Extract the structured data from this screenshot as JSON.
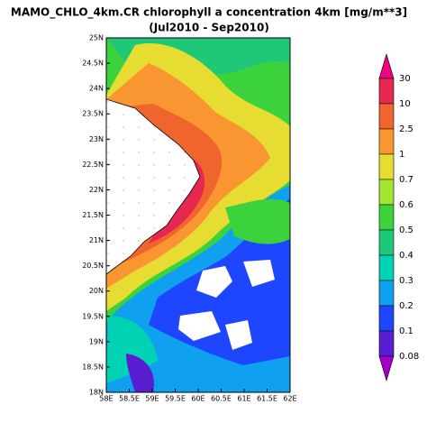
{
  "header": {
    "title": "MAMO_CHLO_4km.CR chlorophyll a concentration 4km [mg/m**3]",
    "subtitle": "(Jul2010 - Sep2010)"
  },
  "map": {
    "lat_labels": [
      "25N",
      "24.5N",
      "24N",
      "23.5N",
      "23N",
      "22.5N",
      "22N",
      "21.5N",
      "21N",
      "20.5N",
      "20N",
      "19.5N",
      "19N",
      "18.5N",
      "18N"
    ],
    "lon_labels": [
      "58E",
      "58.5E",
      "59E",
      "59.5E",
      "60E",
      "60.5E",
      "61E",
      "61.5E",
      "62E"
    ]
  },
  "colorbar": {
    "labels": [
      "30",
      "10",
      "2.5",
      "1",
      "0.7",
      "0.6",
      "0.5",
      "0.4",
      "0.3",
      "0.2",
      "0.1",
      "0.08"
    ],
    "colors": [
      "#f00082",
      "#e62850",
      "#f0642d",
      "#fa9632",
      "#e6dc32",
      "#a0e632",
      "#3cd23c",
      "#1ec878",
      "#00d2b4",
      "#0fa0f0",
      "#1e46ff",
      "#5a1ed2",
      "#a000c8"
    ]
  }
}
